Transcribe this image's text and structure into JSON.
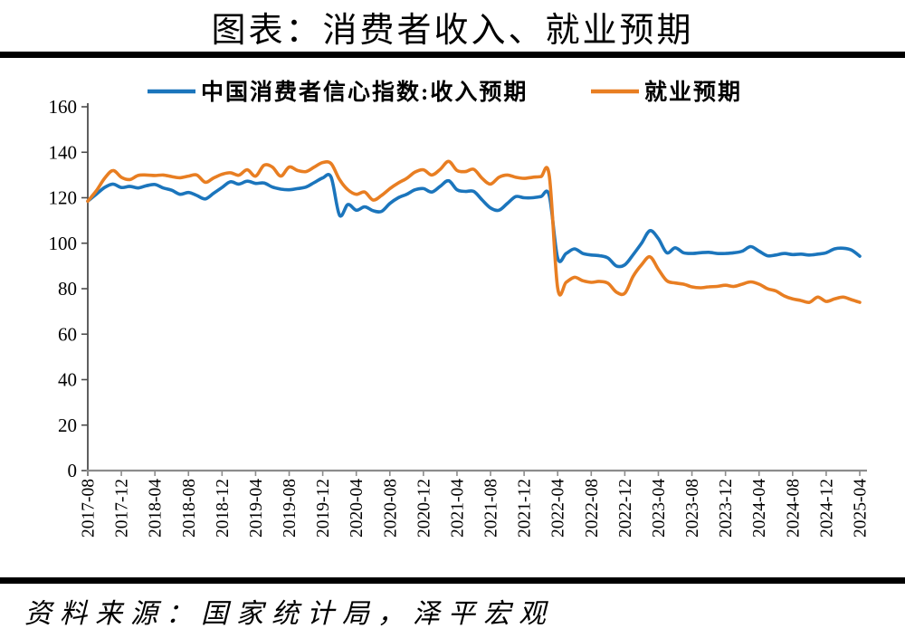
{
  "title": "图表：消费者收入、就业预期",
  "source_note": "资料来源：国家统计局，泽平宏观",
  "colors": {
    "income_blue": "#1B75BC",
    "employment_orange": "#E87E22",
    "divider_bar": "#000000",
    "axis_y": "#4D4D4D",
    "axis_x": "#8C8C8C",
    "text": "#000000"
  },
  "chart_data": {
    "type": "line",
    "title": "图表：消费者收入、就业预期",
    "xlabel": "",
    "ylabel": "",
    "x_start": "2017-08",
    "x_end": "2025-04",
    "frequency": "monthly",
    "grid": false,
    "legend_position": "top-center",
    "ylim": [
      0,
      160
    ],
    "ytick_step": 20,
    "x_tick_labels": [
      "2017-08",
      "2017-12",
      "2018-04",
      "2018-08",
      "2018-12",
      "2019-04",
      "2019-08",
      "2019-12",
      "2020-04",
      "2020-08",
      "2020-12",
      "2021-04",
      "2021-08",
      "2021-12",
      "2022-04",
      "2022-08",
      "2022-12",
      "2023-04",
      "2023-08",
      "2023-12",
      "2024-04",
      "2024-08",
      "2024-12",
      "2025-04"
    ],
    "x_tick_every_n_points": 4,
    "series": [
      {
        "name": "中国消费者信心指数:收入预期",
        "color": "#1B75BC",
        "values": [
          118.5,
          121.5,
          124.5,
          126.0,
          124.5,
          125.0,
          124.3,
          125.3,
          125.8,
          124.3,
          123.3,
          121.5,
          122.3,
          121.0,
          119.5,
          122.0,
          124.5,
          127.0,
          126.0,
          127.3,
          126.3,
          126.5,
          124.7,
          123.8,
          123.5,
          124.0,
          124.7,
          126.7,
          128.7,
          129.0,
          112.3,
          117.0,
          114.5,
          116.0,
          114.3,
          114.0,
          117.5,
          120.0,
          121.5,
          123.5,
          124.0,
          122.5,
          125.0,
          127.5,
          123.5,
          122.8,
          122.8,
          119.0,
          115.5,
          114.5,
          117.5,
          120.5,
          120.0,
          120.0,
          120.5,
          121.0,
          93.5,
          95.5,
          97.5,
          95.5,
          94.8,
          94.5,
          93.5,
          90.0,
          90.5,
          95.0,
          100.0,
          105.5,
          102.0,
          95.8,
          98.0,
          95.8,
          95.5,
          95.8,
          96.0,
          95.5,
          95.5,
          95.8,
          96.5,
          98.5,
          96.5,
          94.5,
          94.8,
          95.5,
          95.0,
          95.2,
          94.8,
          95.2,
          95.8,
          97.5,
          97.8,
          97.0,
          94.3
        ]
      },
      {
        "name": "就业预期",
        "color": "#E87E22",
        "values": [
          118.5,
          123.0,
          128.5,
          132.0,
          129.0,
          128.0,
          129.8,
          130.0,
          129.8,
          130.0,
          129.3,
          128.8,
          129.5,
          130.0,
          126.8,
          128.7,
          130.3,
          131.0,
          129.9,
          132.3,
          129.5,
          134.3,
          133.5,
          129.5,
          133.5,
          132.0,
          131.5,
          133.5,
          135.5,
          135.0,
          128.0,
          123.5,
          121.5,
          122.5,
          119.0,
          121.0,
          124.0,
          126.5,
          128.5,
          131.3,
          132.3,
          130.0,
          132.5,
          136.0,
          132.0,
          131.5,
          132.5,
          128.5,
          126.0,
          129.0,
          130.0,
          129.0,
          128.5,
          129.0,
          129.3,
          129.8,
          80.3,
          82.8,
          85.0,
          83.5,
          82.8,
          83.2,
          82.4,
          78.5,
          78.0,
          85.5,
          90.5,
          94.0,
          88.5,
          83.5,
          82.5,
          82.0,
          80.8,
          80.4,
          80.8,
          81.0,
          81.5,
          81.0,
          82.0,
          83.0,
          82.0,
          80.0,
          79.0,
          76.8,
          75.5,
          74.8,
          74.0,
          76.3,
          74.4,
          75.5,
          76.3,
          75.2,
          74.0
        ]
      }
    ]
  }
}
